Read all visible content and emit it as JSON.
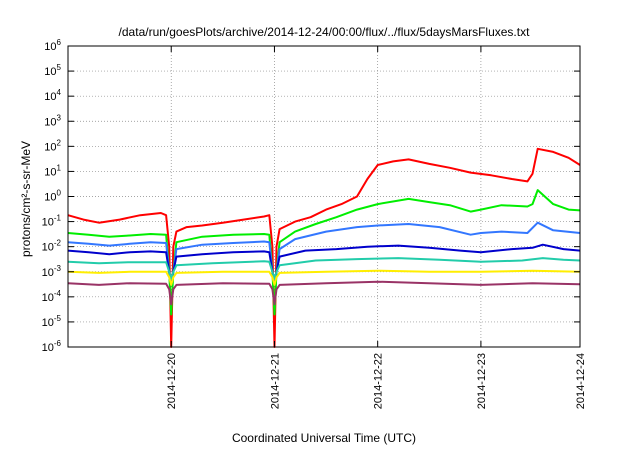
{
  "chart_data": {
    "type": "line",
    "title": "/data/run/goesPlots/archive/2014-12-24/00:00/flux/../flux/5daysMarsFluxes.txt",
    "xlabel": "Coordinated Universal Time (UTC)",
    "ylabel": "protons/cm²-s-sr-MeV",
    "y_scale": "log",
    "ylim": [
      1e-06,
      1000000.0
    ],
    "xlim": [
      0,
      4.96
    ],
    "x_units": "days since 2014-12-19 00:00 UTC",
    "grid": true,
    "y_ticks": [
      {
        "exp": "-6"
      },
      {
        "exp": "-5"
      },
      {
        "exp": "-4"
      },
      {
        "exp": "-3"
      },
      {
        "exp": "-2"
      },
      {
        "exp": "-1"
      },
      {
        "exp": "0"
      },
      {
        "exp": "1"
      },
      {
        "exp": "2"
      },
      {
        "exp": "3"
      },
      {
        "exp": "4"
      },
      {
        "exp": "5"
      },
      {
        "exp": "6"
      }
    ],
    "x_ticks": [
      {
        "label": "2014-12-20",
        "x": 1.0
      },
      {
        "label": "2014-12-21",
        "x": 2.0
      },
      {
        "label": "2014-12-22",
        "x": 3.0
      },
      {
        "label": "2014-12-23",
        "x": 4.0
      },
      {
        "label": "2014-12-24",
        "x": 4.96
      }
    ],
    "series": [
      {
        "color": "#ff0000",
        "points": [
          [
            0.0,
            0.18
          ],
          [
            0.15,
            0.12
          ],
          [
            0.3,
            0.09
          ],
          [
            0.5,
            0.12
          ],
          [
            0.7,
            0.18
          ],
          [
            0.9,
            0.22
          ],
          [
            0.95,
            0.18
          ],
          [
            0.98,
            0.01
          ],
          [
            1.0,
            1e-06
          ],
          [
            1.02,
            0.01
          ],
          [
            1.05,
            0.04
          ],
          [
            1.15,
            0.06
          ],
          [
            1.3,
            0.07
          ],
          [
            1.5,
            0.09
          ],
          [
            1.7,
            0.12
          ],
          [
            1.9,
            0.16
          ],
          [
            1.95,
            0.18
          ],
          [
            1.98,
            0.01
          ],
          [
            2.0,
            1e-06
          ],
          [
            2.02,
            0.01
          ],
          [
            2.05,
            0.05
          ],
          [
            2.2,
            0.1
          ],
          [
            2.35,
            0.15
          ],
          [
            2.5,
            0.3
          ],
          [
            2.65,
            0.5
          ],
          [
            2.8,
            1.0
          ],
          [
            2.9,
            5
          ],
          [
            3.0,
            18
          ],
          [
            3.15,
            25
          ],
          [
            3.3,
            30
          ],
          [
            3.5,
            20
          ],
          [
            3.7,
            14
          ],
          [
            3.9,
            9
          ],
          [
            4.1,
            7
          ],
          [
            4.3,
            5
          ],
          [
            4.45,
            4
          ],
          [
            4.5,
            8
          ],
          [
            4.55,
            80
          ],
          [
            4.7,
            60
          ],
          [
            4.85,
            35
          ],
          [
            4.96,
            18
          ]
        ]
      },
      {
        "color": "#00ee00",
        "points": [
          [
            0.0,
            0.035
          ],
          [
            0.2,
            0.03
          ],
          [
            0.4,
            0.025
          ],
          [
            0.6,
            0.028
          ],
          [
            0.8,
            0.032
          ],
          [
            0.95,
            0.03
          ],
          [
            0.98,
            0.001
          ],
          [
            1.0,
            2e-05
          ],
          [
            1.02,
            0.001
          ],
          [
            1.05,
            0.015
          ],
          [
            1.3,
            0.025
          ],
          [
            1.6,
            0.03
          ],
          [
            1.9,
            0.032
          ],
          [
            1.95,
            0.03
          ],
          [
            1.98,
            0.001
          ],
          [
            2.0,
            2e-05
          ],
          [
            2.02,
            0.001
          ],
          [
            2.05,
            0.015
          ],
          [
            2.2,
            0.04
          ],
          [
            2.4,
            0.08
          ],
          [
            2.6,
            0.15
          ],
          [
            2.8,
            0.3
          ],
          [
            3.0,
            0.5
          ],
          [
            3.3,
            0.8
          ],
          [
            3.5,
            0.6
          ],
          [
            3.7,
            0.45
          ],
          [
            3.9,
            0.25
          ],
          [
            4.0,
            0.3
          ],
          [
            4.2,
            0.45
          ],
          [
            4.45,
            0.4
          ],
          [
            4.5,
            0.5
          ],
          [
            4.55,
            1.8
          ],
          [
            4.7,
            0.5
          ],
          [
            4.85,
            0.3
          ],
          [
            4.96,
            0.28
          ]
        ]
      },
      {
        "color": "#3377ff",
        "points": [
          [
            0.0,
            0.015
          ],
          [
            0.2,
            0.013
          ],
          [
            0.4,
            0.011
          ],
          [
            0.6,
            0.013
          ],
          [
            0.8,
            0.015
          ],
          [
            0.95,
            0.014
          ],
          [
            0.98,
            0.001
          ],
          [
            1.0,
            0.0003
          ],
          [
            1.02,
            0.001
          ],
          [
            1.05,
            0.008
          ],
          [
            1.3,
            0.012
          ],
          [
            1.6,
            0.014
          ],
          [
            1.9,
            0.016
          ],
          [
            1.95,
            0.015
          ],
          [
            1.98,
            0.001
          ],
          [
            2.0,
            0.0003
          ],
          [
            2.02,
            0.001
          ],
          [
            2.05,
            0.008
          ],
          [
            2.2,
            0.02
          ],
          [
            2.5,
            0.04
          ],
          [
            2.8,
            0.06
          ],
          [
            3.0,
            0.07
          ],
          [
            3.3,
            0.08
          ],
          [
            3.6,
            0.06
          ],
          [
            3.9,
            0.03
          ],
          [
            4.0,
            0.035
          ],
          [
            4.2,
            0.04
          ],
          [
            4.45,
            0.035
          ],
          [
            4.55,
            0.09
          ],
          [
            4.7,
            0.045
          ],
          [
            4.96,
            0.035
          ]
        ]
      },
      {
        "color": "#0000cc",
        "points": [
          [
            0.0,
            0.007
          ],
          [
            0.2,
            0.006
          ],
          [
            0.4,
            0.005
          ],
          [
            0.6,
            0.006
          ],
          [
            0.8,
            0.0065
          ],
          [
            0.95,
            0.006
          ],
          [
            0.98,
            0.001
          ],
          [
            1.0,
            0.0004
          ],
          [
            1.02,
            0.001
          ],
          [
            1.05,
            0.004
          ],
          [
            1.3,
            0.005
          ],
          [
            1.6,
            0.006
          ],
          [
            1.9,
            0.0065
          ],
          [
            1.95,
            0.006
          ],
          [
            1.98,
            0.001
          ],
          [
            2.0,
            0.0004
          ],
          [
            2.02,
            0.001
          ],
          [
            2.05,
            0.004
          ],
          [
            2.3,
            0.007
          ],
          [
            2.6,
            0.008
          ],
          [
            2.9,
            0.01
          ],
          [
            3.2,
            0.011
          ],
          [
            3.5,
            0.009
          ],
          [
            3.8,
            0.007
          ],
          [
            4.0,
            0.006
          ],
          [
            4.3,
            0.008
          ],
          [
            4.5,
            0.009
          ],
          [
            4.6,
            0.012
          ],
          [
            4.8,
            0.008
          ],
          [
            4.96,
            0.007
          ]
        ]
      },
      {
        "color": "#22ccaa",
        "points": [
          [
            0.0,
            0.0025
          ],
          [
            0.3,
            0.0022
          ],
          [
            0.6,
            0.0024
          ],
          [
            0.95,
            0.0024
          ],
          [
            0.98,
            0.001
          ],
          [
            1.0,
            0.0005
          ],
          [
            1.02,
            0.001
          ],
          [
            1.05,
            0.0018
          ],
          [
            1.4,
            0.0022
          ],
          [
            1.9,
            0.0026
          ],
          [
            1.95,
            0.0025
          ],
          [
            1.98,
            0.001
          ],
          [
            2.0,
            0.0005
          ],
          [
            2.02,
            0.001
          ],
          [
            2.05,
            0.0018
          ],
          [
            2.4,
            0.0028
          ],
          [
            2.8,
            0.0032
          ],
          [
            3.2,
            0.0035
          ],
          [
            3.6,
            0.003
          ],
          [
            4.0,
            0.0025
          ],
          [
            4.4,
            0.0028
          ],
          [
            4.6,
            0.0035
          ],
          [
            4.8,
            0.003
          ],
          [
            4.96,
            0.0028
          ]
        ]
      },
      {
        "color": "#ffee00",
        "points": [
          [
            0.0,
            0.001
          ],
          [
            0.3,
            0.0009
          ],
          [
            0.6,
            0.001
          ],
          [
            0.95,
            0.001
          ],
          [
            0.98,
            0.0006
          ],
          [
            1.0,
            0.0003
          ],
          [
            1.02,
            0.0006
          ],
          [
            1.05,
            0.0009
          ],
          [
            1.5,
            0.001
          ],
          [
            1.95,
            0.001
          ],
          [
            1.98,
            0.0006
          ],
          [
            2.0,
            0.0003
          ],
          [
            2.02,
            0.0006
          ],
          [
            2.05,
            0.0009
          ],
          [
            2.5,
            0.001
          ],
          [
            3.0,
            0.0011
          ],
          [
            3.5,
            0.001
          ],
          [
            4.0,
            0.001
          ],
          [
            4.5,
            0.0011
          ],
          [
            4.96,
            0.001
          ]
        ]
      },
      {
        "color": "#993366",
        "points": [
          [
            0.0,
            0.00035
          ],
          [
            0.3,
            0.0003
          ],
          [
            0.6,
            0.00035
          ],
          [
            0.95,
            0.00033
          ],
          [
            0.98,
            0.0002
          ],
          [
            1.0,
            5e-05
          ],
          [
            1.02,
            0.0002
          ],
          [
            1.05,
            0.0003
          ],
          [
            1.5,
            0.00035
          ],
          [
            1.95,
            0.00033
          ],
          [
            1.98,
            0.0002
          ],
          [
            2.0,
            5e-05
          ],
          [
            2.02,
            0.0002
          ],
          [
            2.05,
            0.0003
          ],
          [
            2.5,
            0.00035
          ],
          [
            3.0,
            0.0004
          ],
          [
            3.5,
            0.00035
          ],
          [
            4.0,
            0.0003
          ],
          [
            4.5,
            0.00035
          ],
          [
            4.96,
            0.00032
          ]
        ]
      }
    ]
  }
}
